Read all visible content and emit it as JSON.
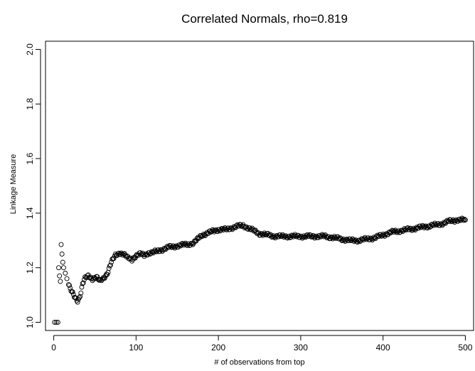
{
  "chart_data": {
    "type": "scatter",
    "title": "Correlated Normals, rho=0.819",
    "xlabel": "# of observations from top",
    "ylabel": "Linkage Measure",
    "xlim": [
      -10,
      510
    ],
    "ylim": [
      0.97,
      2.03
    ],
    "xticks": [
      0,
      100,
      200,
      300,
      400,
      500
    ],
    "yticks": [
      1.0,
      1.2,
      1.4,
      1.6,
      1.8,
      2.0
    ],
    "xtick_labels": [
      "0",
      "100",
      "200",
      "300",
      "400",
      "500"
    ],
    "ytick_labels": [
      "1.0",
      "1.2",
      "1.4",
      "1.6",
      "1.8",
      "2.0"
    ],
    "grid": false,
    "marker": "open-circle",
    "keypoints": [
      [
        1,
        1.0
      ],
      [
        3,
        1.0
      ],
      [
        5,
        1.0
      ],
      [
        6,
        1.2
      ],
      [
        7,
        1.17
      ],
      [
        8,
        1.15
      ],
      [
        9,
        1.285
      ],
      [
        10,
        1.25
      ],
      [
        11,
        1.22
      ],
      [
        12,
        1.2
      ],
      [
        14,
        1.18
      ],
      [
        16,
        1.16
      ],
      [
        18,
        1.14
      ],
      [
        20,
        1.12
      ],
      [
        23,
        1.105
      ],
      [
        26,
        1.09
      ],
      [
        29,
        1.08
      ],
      [
        31,
        1.09
      ],
      [
        33,
        1.11
      ],
      [
        35,
        1.14
      ],
      [
        38,
        1.16
      ],
      [
        42,
        1.17
      ],
      [
        47,
        1.16
      ],
      [
        52,
        1.165
      ],
      [
        56,
        1.15
      ],
      [
        60,
        1.16
      ],
      [
        65,
        1.18
      ],
      [
        70,
        1.22
      ],
      [
        75,
        1.245
      ],
      [
        80,
        1.255
      ],
      [
        85,
        1.25
      ],
      [
        90,
        1.235
      ],
      [
        95,
        1.23
      ],
      [
        100,
        1.245
      ],
      [
        105,
        1.25
      ],
      [
        110,
        1.245
      ],
      [
        115,
        1.255
      ],
      [
        120,
        1.255
      ],
      [
        125,
        1.26
      ],
      [
        130,
        1.265
      ],
      [
        135,
        1.27
      ],
      [
        140,
        1.275
      ],
      [
        150,
        1.28
      ],
      [
        160,
        1.285
      ],
      [
        170,
        1.29
      ],
      [
        180,
        1.32
      ],
      [
        190,
        1.33
      ],
      [
        200,
        1.34
      ],
      [
        210,
        1.34
      ],
      [
        220,
        1.35
      ],
      [
        230,
        1.355
      ],
      [
        240,
        1.34
      ],
      [
        250,
        1.325
      ],
      [
        260,
        1.32
      ],
      [
        270,
        1.315
      ],
      [
        280,
        1.315
      ],
      [
        290,
        1.315
      ],
      [
        300,
        1.315
      ],
      [
        310,
        1.315
      ],
      [
        320,
        1.315
      ],
      [
        330,
        1.315
      ],
      [
        340,
        1.31
      ],
      [
        350,
        1.305
      ],
      [
        360,
        1.3
      ],
      [
        370,
        1.3
      ],
      [
        380,
        1.305
      ],
      [
        390,
        1.31
      ],
      [
        400,
        1.32
      ],
      [
        410,
        1.33
      ],
      [
        420,
        1.335
      ],
      [
        430,
        1.34
      ],
      [
        440,
        1.345
      ],
      [
        450,
        1.35
      ],
      [
        460,
        1.355
      ],
      [
        470,
        1.36
      ],
      [
        480,
        1.37
      ],
      [
        490,
        1.375
      ],
      [
        500,
        1.375
      ]
    ]
  }
}
